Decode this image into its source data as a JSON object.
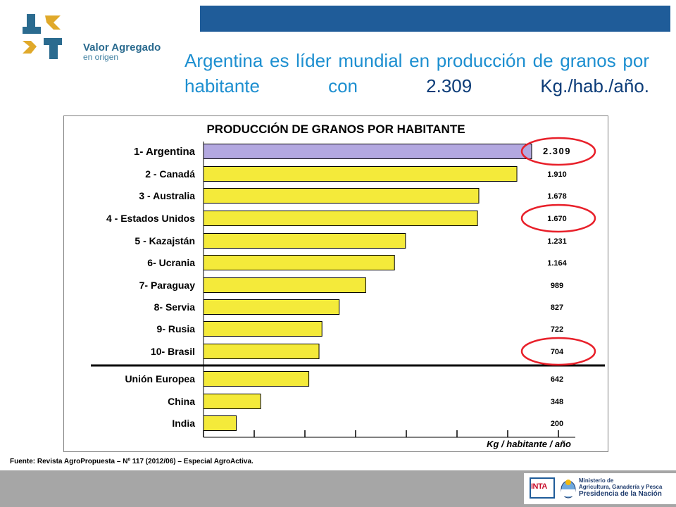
{
  "header": {
    "logo": {
      "title": "Valor Agregado",
      "subtitle": "en origen"
    },
    "headline": {
      "before": "Argentina es líder mundial en producción de granos por habitante con ",
      "value": "2.309 Kg./hab./año."
    }
  },
  "chart_data": {
    "type": "bar",
    "orientation": "horizontal",
    "title": "PRODUCCIÓN DE GRANOS POR HABITANTE",
    "xlabel": "Kg / habitante / año",
    "ylabel": "",
    "categories": [
      "1- Argentina",
      "2 - Canadá",
      "3 - Australia",
      "4 - Estados Unidos",
      "5 - Kazajstán",
      "6- Ucrania",
      "7- Paraguay",
      "8- Servia",
      "9- Rusia",
      "10- Brasil",
      "Unión Europea",
      "China",
      "India"
    ],
    "values": [
      2309,
      1910,
      1678,
      1670,
      1231,
      1164,
      989,
      827,
      722,
      704,
      642,
      348,
      200
    ],
    "value_labels": [
      "2.309",
      "1.910",
      "1.678",
      "1.670",
      "1.231",
      "1.164",
      "989",
      "827",
      "722",
      "704",
      "642",
      "348",
      "200"
    ],
    "highlighted": [
      "1- Argentina",
      "4 - Estados Unidos",
      "10- Brasil"
    ],
    "xlim": [
      0,
      2000
    ],
    "colors": {
      "first_bar": "#b3a8e0",
      "bars": "#f4ea3a",
      "circles": "#e8202a"
    }
  },
  "footer": {
    "source": "Fuente: Revista AgroPropuesta – Nº 117 (2012/06) – Especial AgroActiva.",
    "inta": "INTA",
    "ministry_lines": [
      "Ministerio de",
      "Agricultura, Ganadería y Pesca"
    ],
    "presidency": "Presidencia de la Nación"
  }
}
